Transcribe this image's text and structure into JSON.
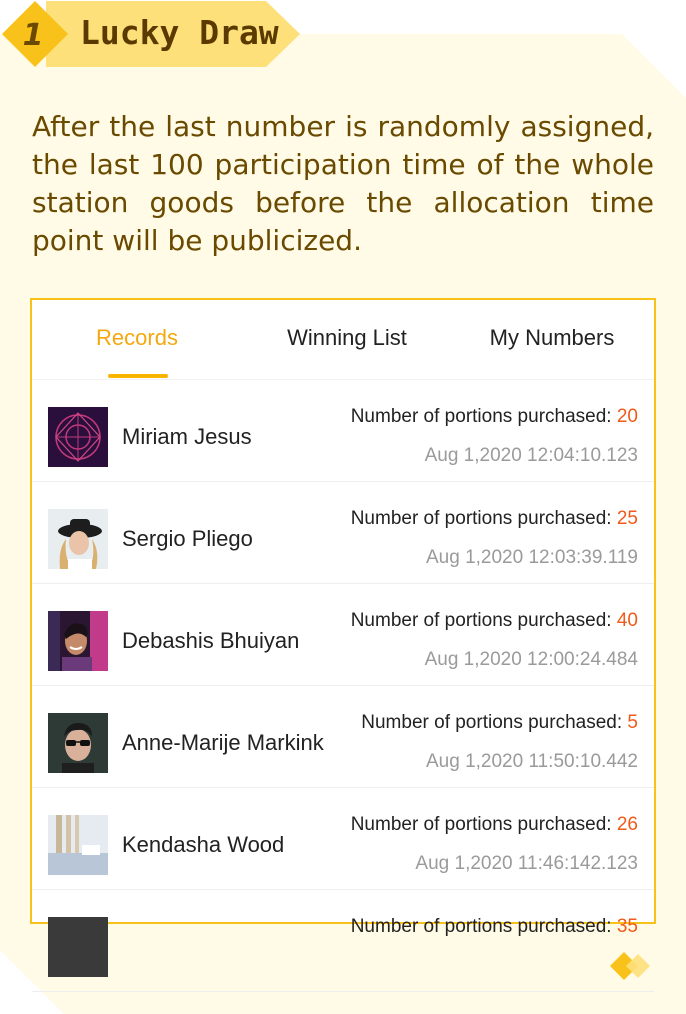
{
  "header": {
    "step_number": "1",
    "title": "Lucky Draw"
  },
  "intro_text": "After the last number is randomly assigned, the last 100 participation time of the whole station goods before the allocation time point will be publicized.",
  "tabs": [
    {
      "label": "Records",
      "active": true
    },
    {
      "label": "Winning List",
      "active": false
    },
    {
      "label": "My Numbers",
      "active": false
    }
  ],
  "records": [
    {
      "name": "Miriam Jesus",
      "purchase_label": "Number of portions purchased:",
      "count": "20",
      "time": "Aug 1,2020 12:04:10.123"
    },
    {
      "name": "Sergio Pliego",
      "purchase_label": "Number of portions purchased:",
      "count": "25",
      "time": "Aug 1,2020 12:03:39.119"
    },
    {
      "name": "Debashis Bhuiyan",
      "purchase_label": "Number of portions purchased:",
      "count": "40",
      "time": "Aug 1,2020 12:00:24.484"
    },
    {
      "name": "Anne-Marije Markink",
      "purchase_label": "Number of portions purchased:",
      "count": "5",
      "time": "Aug 1,2020 11:50:10.442"
    },
    {
      "name": "Kendasha Wood",
      "purchase_label": "Number of portions purchased:",
      "count": "26",
      "time": "Aug 1,2020 11:46:142.123"
    },
    {
      "name": "",
      "purchase_label": "Number of portions purchased:",
      "count": "35",
      "time": ""
    }
  ],
  "colors": {
    "accent": "#f8c21a",
    "active_tab": "#f5a80e",
    "count": "#f05a1a",
    "intro_text": "#6a4a00",
    "panel_bg": "#fffbe6"
  }
}
